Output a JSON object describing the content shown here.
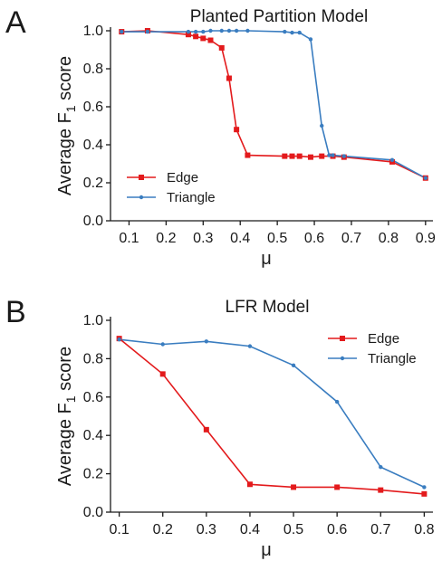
{
  "panels": [
    {
      "letter": "A"
    },
    {
      "letter": "B"
    }
  ],
  "chart_data": [
    {
      "type": "line",
      "title": "Planted Partition Model",
      "xlabel": "μ",
      "ylabel": "Average F1 score",
      "xlim": [
        0.05,
        0.92
      ],
      "ylim": [
        0.0,
        1.0
      ],
      "xticks": [
        "0.1",
        "0.2",
        "0.3",
        "0.4",
        "0.5",
        "0.6",
        "0.7",
        "0.8",
        "0.9"
      ],
      "yticks": [
        "0.0",
        "0.2",
        "0.4",
        "0.6",
        "0.8",
        "1.0"
      ],
      "grid": false,
      "legend_position": "bottom-left",
      "series": [
        {
          "name": "Edge",
          "color": "#e31a1c",
          "marker": "square",
          "x": [
            0.08,
            0.15,
            0.26,
            0.28,
            0.3,
            0.32,
            0.35,
            0.37,
            0.39,
            0.42,
            0.52,
            0.54,
            0.56,
            0.59,
            0.62,
            0.65,
            0.68,
            0.81,
            0.9
          ],
          "y": [
            0.995,
            1.0,
            0.98,
            0.97,
            0.96,
            0.95,
            0.91,
            0.75,
            0.48,
            0.345,
            0.34,
            0.34,
            0.34,
            0.335,
            0.34,
            0.34,
            0.335,
            0.31,
            0.225
          ]
        },
        {
          "name": "Triangle",
          "color": "#3a7dc0",
          "marker": "dot",
          "x": [
            0.08,
            0.15,
            0.26,
            0.28,
            0.3,
            0.32,
            0.35,
            0.37,
            0.39,
            0.42,
            0.52,
            0.54,
            0.56,
            0.59,
            0.62,
            0.64,
            0.65,
            0.68,
            0.81,
            0.9
          ],
          "y": [
            0.995,
            0.995,
            0.995,
            0.995,
            0.995,
            1.0,
            1.0,
            1.0,
            1.0,
            1.0,
            0.995,
            0.99,
            0.99,
            0.955,
            0.5,
            0.345,
            0.345,
            0.34,
            0.32,
            0.225
          ]
        }
      ]
    },
    {
      "type": "line",
      "title": "LFR Model",
      "xlabel": "μ",
      "ylabel": "Average F1 score",
      "xlim": [
        0.08,
        0.82
      ],
      "ylim": [
        0.0,
        1.0
      ],
      "xticks": [
        "0.1",
        "0.2",
        "0.3",
        "0.4",
        "0.5",
        "0.6",
        "0.7",
        "0.8"
      ],
      "yticks": [
        "0.0",
        "0.2",
        "0.4",
        "0.6",
        "0.8",
        "1.0"
      ],
      "grid": false,
      "legend_position": "top-right",
      "series": [
        {
          "name": "Edge",
          "color": "#e31a1c",
          "marker": "square",
          "x": [
            0.1,
            0.2,
            0.3,
            0.4,
            0.5,
            0.6,
            0.7,
            0.8
          ],
          "y": [
            0.905,
            0.72,
            0.43,
            0.145,
            0.13,
            0.13,
            0.115,
            0.095
          ]
        },
        {
          "name": "Triangle",
          "color": "#3a7dc0",
          "marker": "dot",
          "x": [
            0.1,
            0.2,
            0.3,
            0.4,
            0.5,
            0.6,
            0.7,
            0.8
          ],
          "y": [
            0.9,
            0.875,
            0.89,
            0.865,
            0.765,
            0.575,
            0.235,
            0.13
          ]
        }
      ]
    }
  ]
}
